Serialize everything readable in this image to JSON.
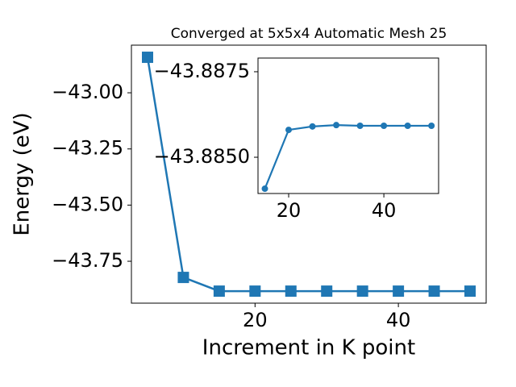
{
  "chart_data": [
    {
      "type": "line",
      "title": "Converged at 5x5x4 Automatic Mesh 25",
      "xlabel": "Increment in K point",
      "ylabel": "Energy (eV)",
      "x": [
        5,
        10,
        15,
        20,
        25,
        30,
        35,
        40,
        45,
        50
      ],
      "series": [
        {
          "name": "Energy",
          "color": "#1f77b4",
          "marker": "square",
          "values": [
            -42.842,
            -43.822,
            -43.883,
            -43.883,
            -43.883,
            -43.883,
            -43.883,
            -43.883,
            -43.883,
            -43.883
          ]
        }
      ],
      "xlim": [
        2.75,
        52.25
      ],
      "xticks": [
        20,
        40
      ],
      "ylim": [
        -43.9365,
        -42.788
      ],
      "yticks": [
        {
          "value": -43.0,
          "label": "−43.00"
        },
        {
          "value": -43.25,
          "label": "−43.25"
        },
        {
          "value": -43.5,
          "label": "−43.50"
        },
        {
          "value": -43.75,
          "label": "−43.75"
        }
      ]
    },
    {
      "type": "line",
      "x": [
        15,
        20,
        25,
        30,
        35,
        40,
        45,
        50
      ],
      "series": [
        {
          "name": "Energy",
          "color": "#1f77b4",
          "marker": "circle",
          "values": [
            -43.88408,
            -43.8858,
            -43.8859,
            -43.88594,
            -43.88592,
            -43.88592,
            -43.88592,
            -43.88592
          ]
        }
      ],
      "xlim": [
        13.56,
        51.5
      ],
      "xticks": [
        20,
        40
      ],
      "ylim": [
        -43.88394,
        -43.8879
      ],
      "yticks": [
        {
          "value": -43.8875,
          "label": "−43.8875"
        },
        {
          "value": -43.885,
          "label": "−43.8850"
        }
      ]
    }
  ]
}
